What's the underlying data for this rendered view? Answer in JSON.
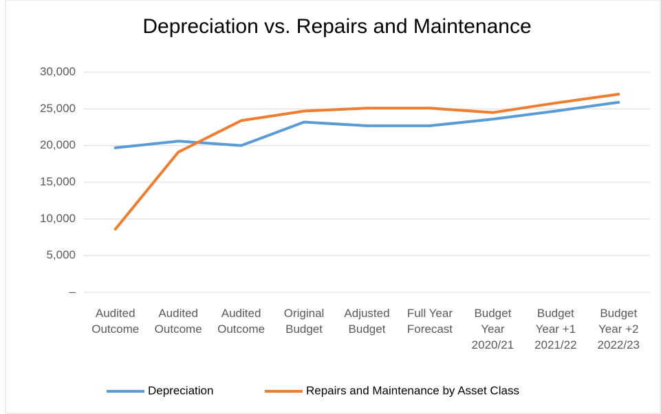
{
  "chart_data": {
    "type": "line",
    "title": "Depreciation vs. Repairs and Maintenance",
    "categories": [
      "Audited\nOutcome",
      "Audited\nOutcome",
      "Audited\nOutcome",
      "Original\nBudget",
      "Adjusted\nBudget",
      "Full Year\nForecast",
      "Budget\nYear\n2020/21",
      "Budget\nYear +1\n2021/22",
      "Budget\nYear +2\n2022/23"
    ],
    "series": [
      {
        "name": "Depreciation",
        "color": "#5b9bd5",
        "values": [
          19700,
          20600,
          20000,
          23200,
          22700,
          22700,
          23600,
          24700,
          25900
        ]
      },
      {
        "name": "Repairs and Maintenance by Asset Class",
        "color": "#ed7d31",
        "values": [
          8600,
          19100,
          23400,
          24700,
          25100,
          25100,
          24500,
          25800,
          27000
        ]
      }
    ],
    "ylim": [
      0,
      30000
    ],
    "yticks": [
      {
        "value": 0,
        "label": "–"
      },
      {
        "value": 5000,
        "label": "5,000"
      },
      {
        "value": 10000,
        "label": "10,000"
      },
      {
        "value": 15000,
        "label": "15,000"
      },
      {
        "value": 20000,
        "label": "20,000"
      },
      {
        "value": 25000,
        "label": "25,000"
      },
      {
        "value": 30000,
        "label": "30,000"
      }
    ],
    "grid": true,
    "legend": "bottom"
  }
}
